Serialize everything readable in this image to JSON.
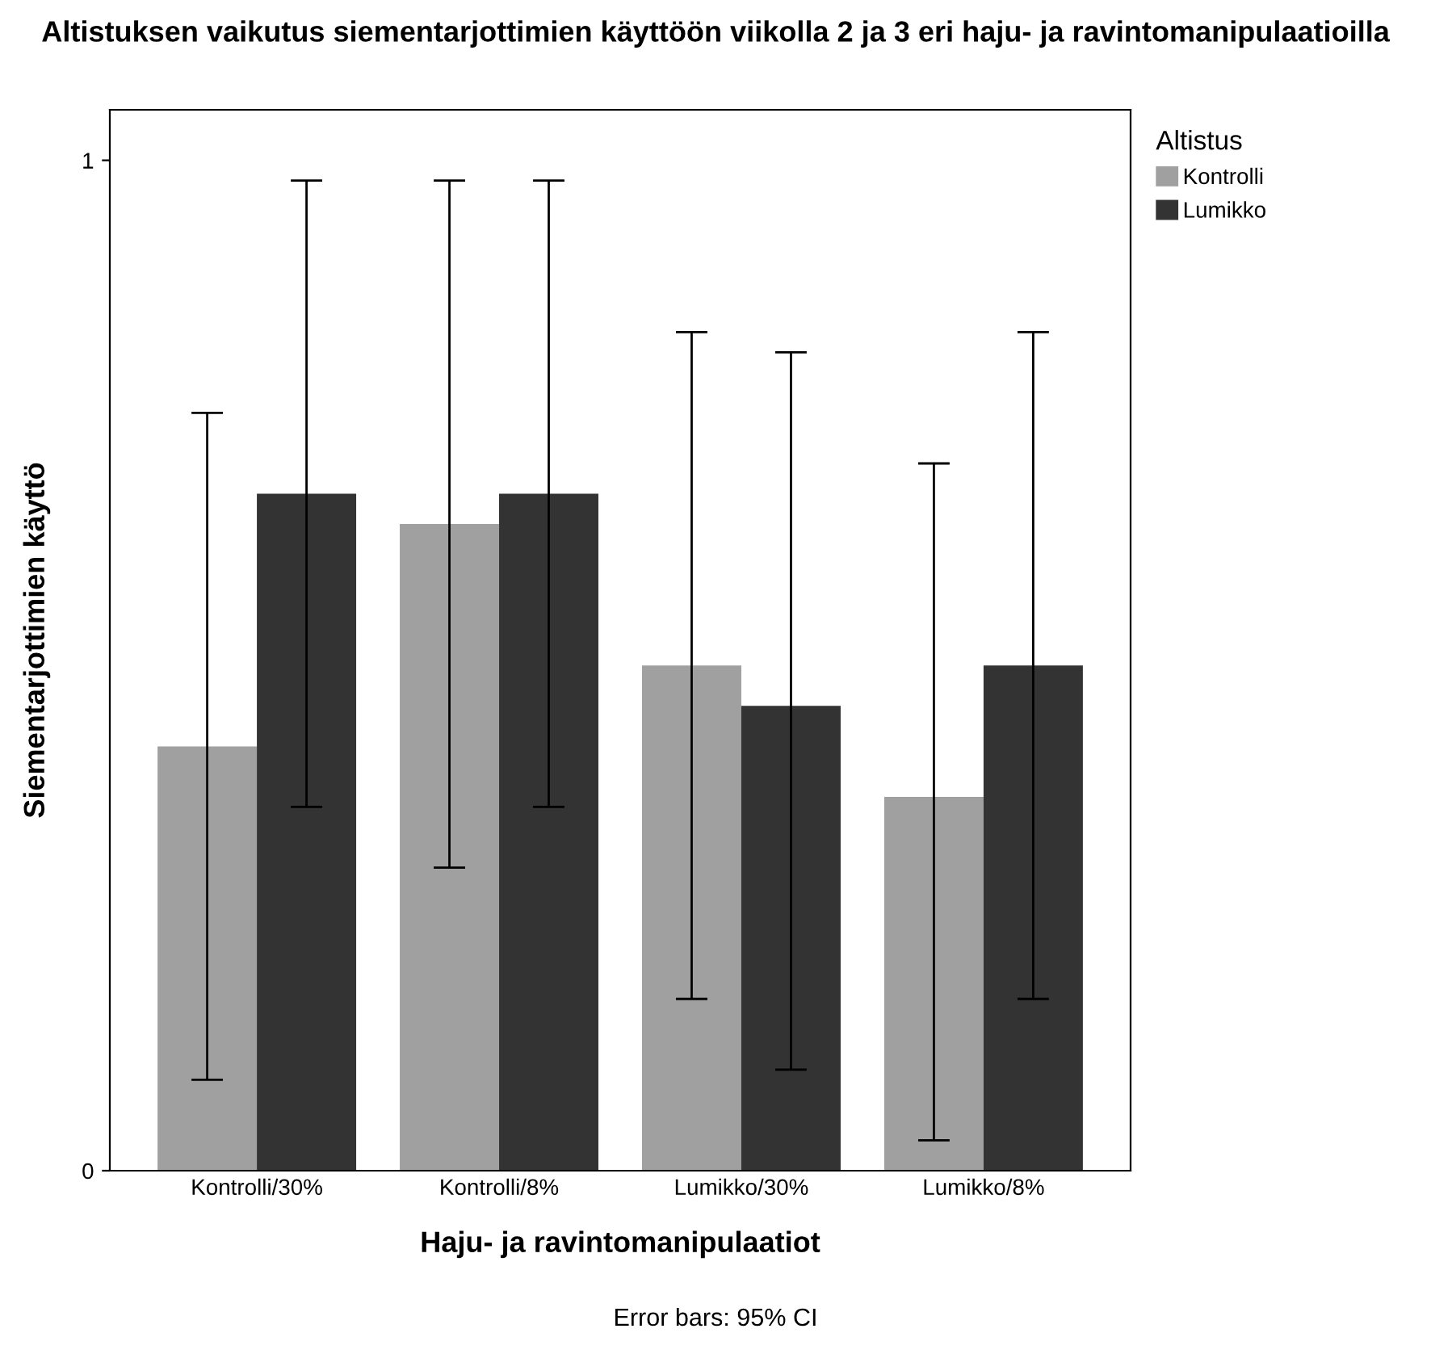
{
  "chart_data": {
    "type": "bar",
    "title": "Altistuksen vaikutus siementarjottimien käyttöön viikolla 2 ja 3 eri haju- ja ravintomanipulaatioilla",
    "xlabel": "Haju- ja ravintomanipulaatiot",
    "ylabel": "Siementarjottimien käyttö",
    "legend_title": "Altistus",
    "categories": [
      "Kontrolli/30%",
      "Kontrolli/8%",
      "Lumikko/30%",
      "Lumikko/8%"
    ],
    "series": [
      {
        "name": "Kontrolli",
        "color": "#a0a0a0",
        "values": [
          0.42,
          0.64,
          0.5,
          0.37
        ],
        "errors": [
          [
            0.09,
            0.75
          ],
          [
            0.3,
            0.98
          ],
          [
            0.17,
            0.83
          ],
          [
            0.03,
            0.7
          ]
        ]
      },
      {
        "name": "Lumikko",
        "color": "#333333",
        "values": [
          0.67,
          0.67,
          0.46,
          0.5
        ],
        "errors": [
          [
            0.36,
            0.98
          ],
          [
            0.36,
            0.98
          ],
          [
            0.1,
            0.81
          ],
          [
            0.17,
            0.83
          ]
        ]
      }
    ],
    "ylim": [
      0,
      1.05
    ],
    "yticks": [
      0,
      1
    ],
    "grid": false,
    "legend": "top right",
    "annotations": [
      "Error bars: 95% CI"
    ]
  }
}
